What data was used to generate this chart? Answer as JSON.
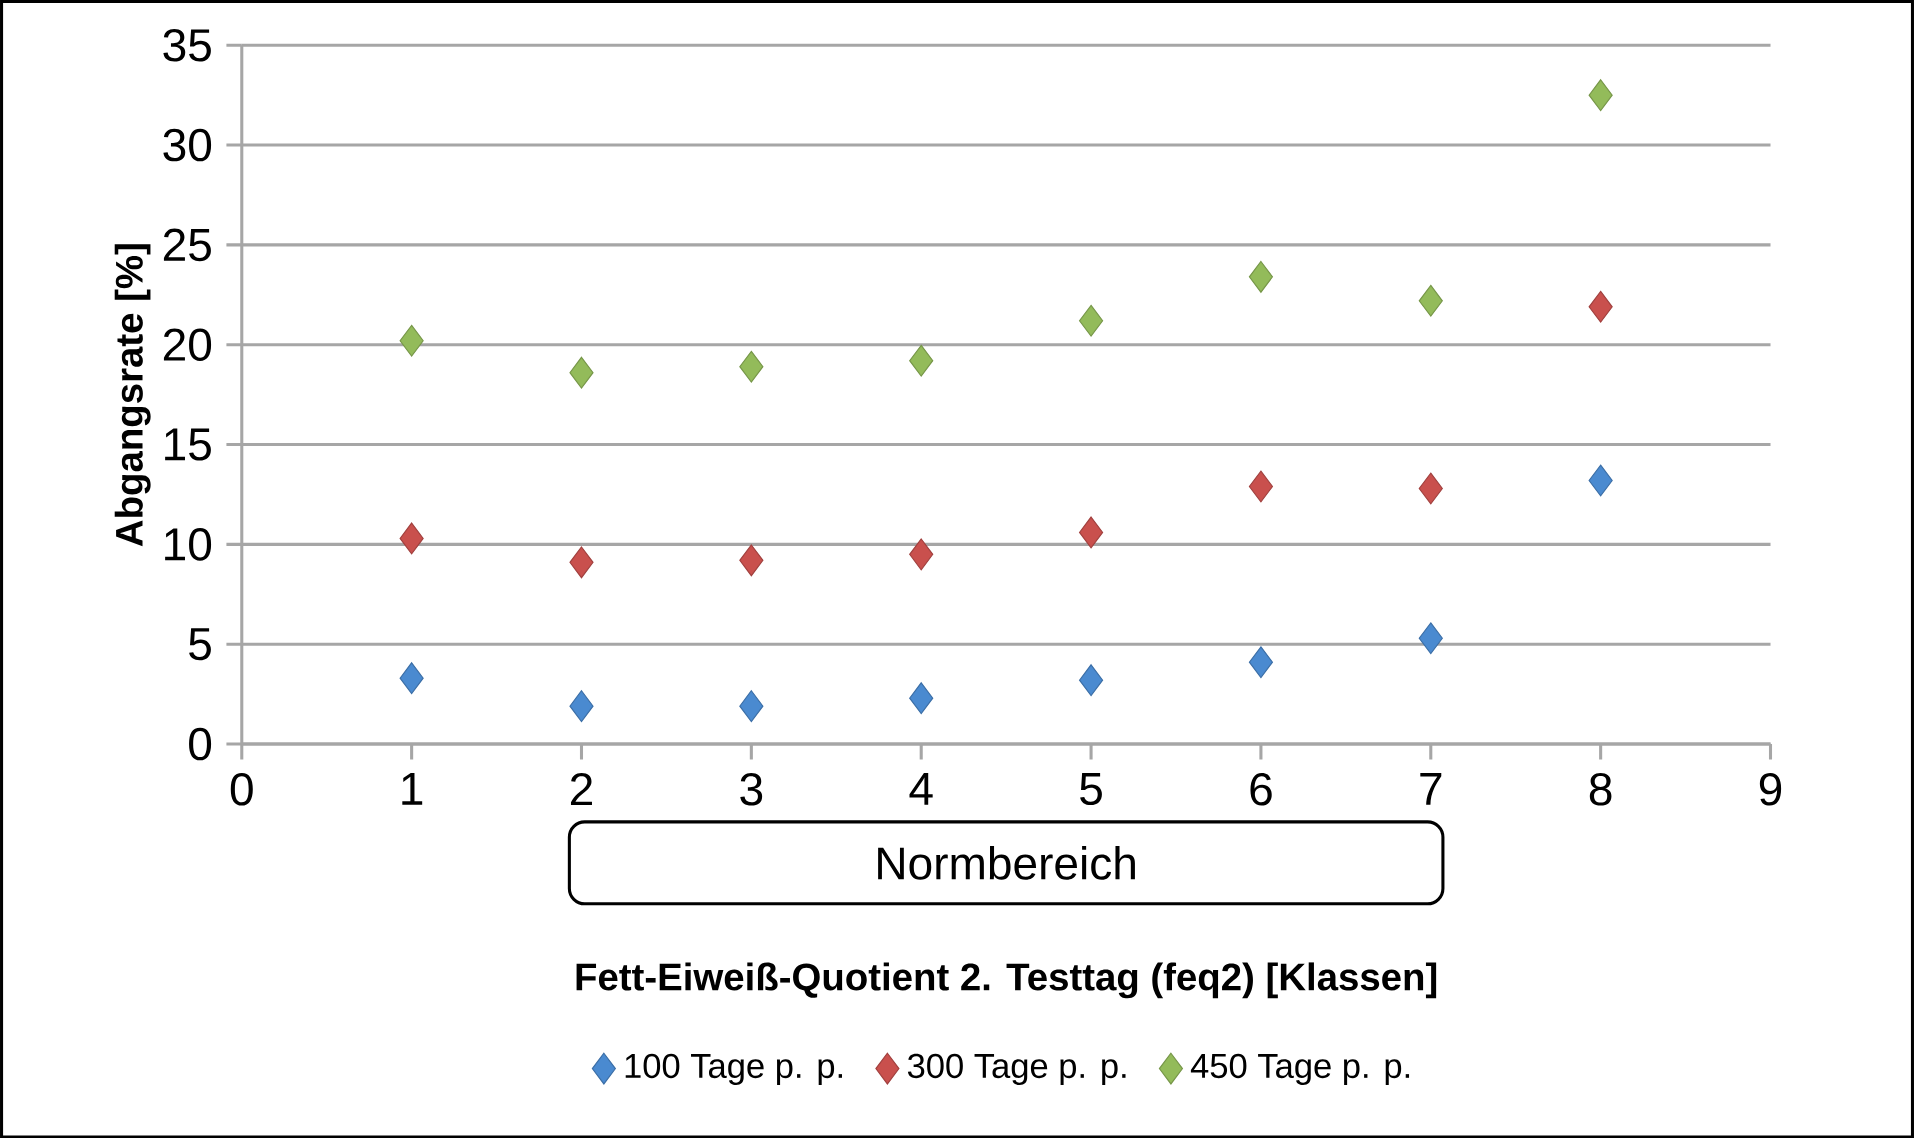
{
  "chart_data": {
    "type": "scatter",
    "xlabel": "Fett-Eiweiß-Quotient 2. Testtag (feq2) [Klassen]",
    "ylabel": "Abgangsrate [%]",
    "annotations": [
      "Normbereich"
    ],
    "x": [
      1,
      2,
      3,
      4,
      5,
      6,
      7,
      8
    ],
    "xlim": [
      0,
      9
    ],
    "xticks": [
      0,
      1,
      2,
      3,
      4,
      5,
      6,
      7,
      8,
      9
    ],
    "ylim": [
      0,
      35
    ],
    "yticks": [
      0,
      5,
      10,
      15,
      20,
      25,
      30,
      35
    ],
    "grid": "y",
    "legend": "bottom",
    "marker": "diamond",
    "series": [
      {
        "name": "100 Tage p. p.",
        "color": "#4a8ad0",
        "values": [
          3.3,
          1.9,
          1.9,
          2.3,
          3.2,
          4.1,
          5.3,
          13.2
        ]
      },
      {
        "name": "300 Tage p. p.",
        "color": "#c9504d",
        "values": [
          10.3,
          9.1,
          9.2,
          9.5,
          10.6,
          12.9,
          12.8,
          21.9
        ]
      },
      {
        "name": "450 Tage p. p.",
        "color": "#93bb5a",
        "values": [
          20.2,
          18.6,
          18.9,
          19.2,
          21.2,
          23.4,
          22.2,
          32.5
        ]
      }
    ]
  }
}
